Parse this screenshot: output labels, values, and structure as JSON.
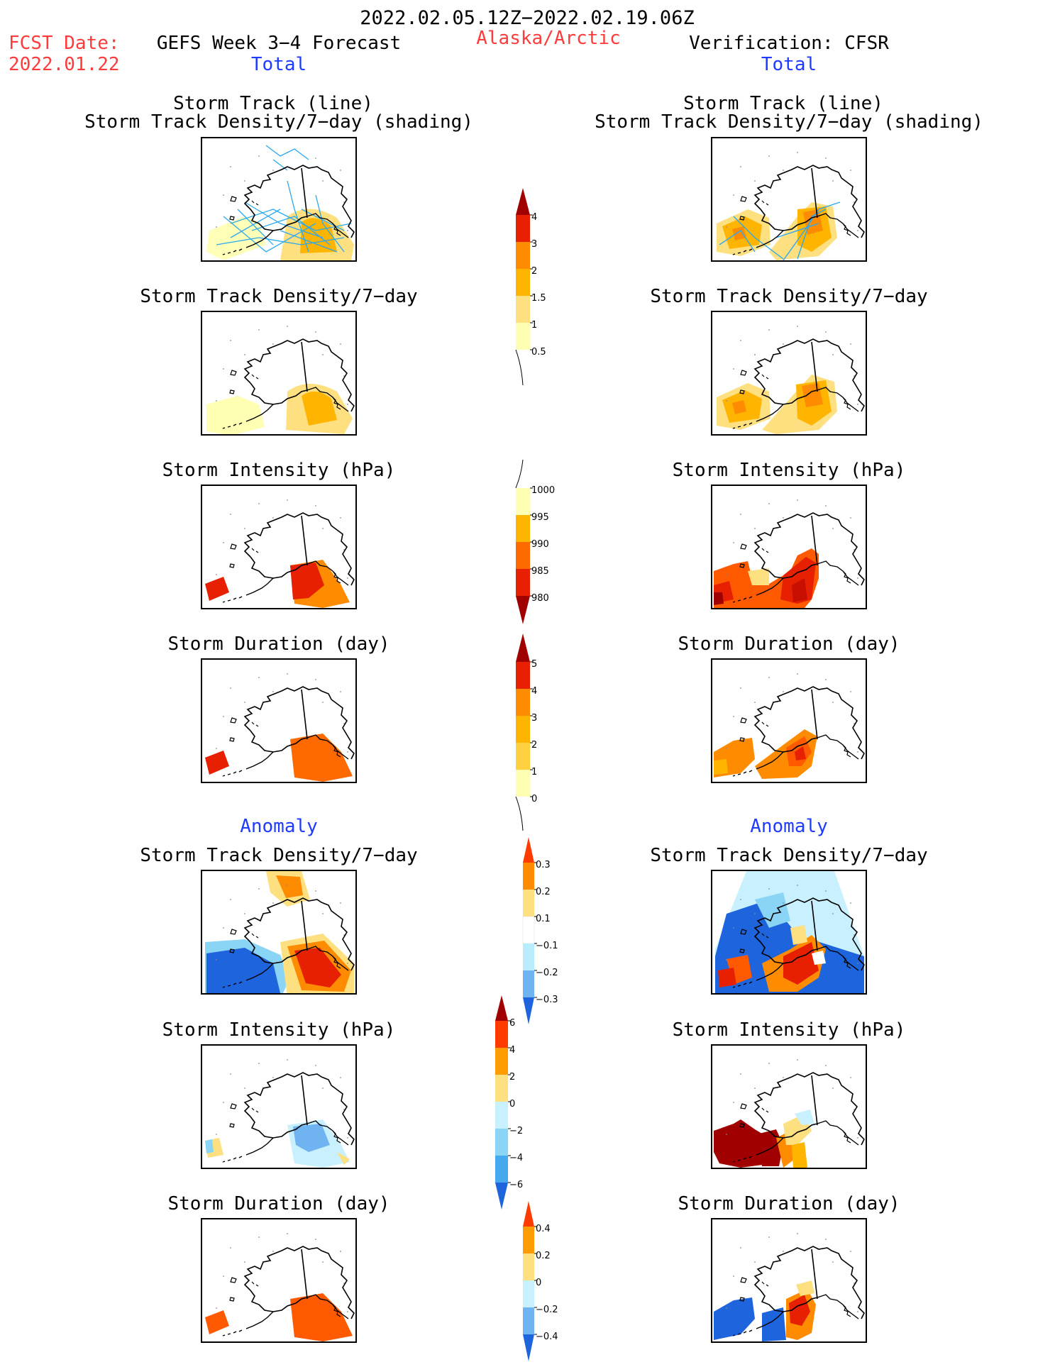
{
  "header": {
    "date_range": "2022.02.05.12Z−2022.02.19.06Z",
    "fcst_label": "FCST Date:",
    "fcst_date": "2022.01.22",
    "left_title": "GEFS Week 3−4 Forecast",
    "region": "Alaska/Arctic",
    "right_title": "Verification: CFSR",
    "left_total": "Total",
    "right_total": "Total"
  },
  "sections": {
    "anomaly_left": "Anomaly",
    "anomaly_right": "Anomaly"
  },
  "panels": {
    "track_line": "Storm Track (line)",
    "track_density_shading": "Storm Track Density/7−day (shading)",
    "track_density": "Storm Track Density/7−day",
    "intensity": "Storm Intensity (hPa)",
    "duration": "Storm Duration (day)"
  },
  "colorbars": {
    "density_total": [
      "4",
      "3",
      "2",
      "1.5",
      "1",
      "0.5"
    ],
    "intensity_total": [
      "1000",
      "995",
      "990",
      "985",
      "980"
    ],
    "duration_total": [
      "5",
      "4",
      "3",
      "2",
      "1",
      "0"
    ],
    "density_anom": [
      "0.3",
      "0.2",
      "0.1",
      "−0.1",
      "−0.2",
      "−0.3"
    ],
    "intensity_anom": [
      "6",
      "4",
      "2",
      "0",
      "−2",
      "−4",
      "−6"
    ],
    "duration_anom": [
      "0.4",
      "0.2",
      "0",
      "−0.2",
      "−0.4"
    ]
  },
  "colors": {
    "title_red": "#ff3b3b",
    "title_blue": "#1f3bff",
    "warm_scale": [
      "#ffffb3",
      "#ffe080",
      "#ffb400",
      "#ff8c00",
      "#ff5a00",
      "#e62000",
      "#a00000"
    ],
    "cool_scale": [
      "#c8f0ff",
      "#8ad4f5",
      "#46a8ee",
      "#1e64dc"
    ],
    "track_line": "#2aa8f0"
  }
}
